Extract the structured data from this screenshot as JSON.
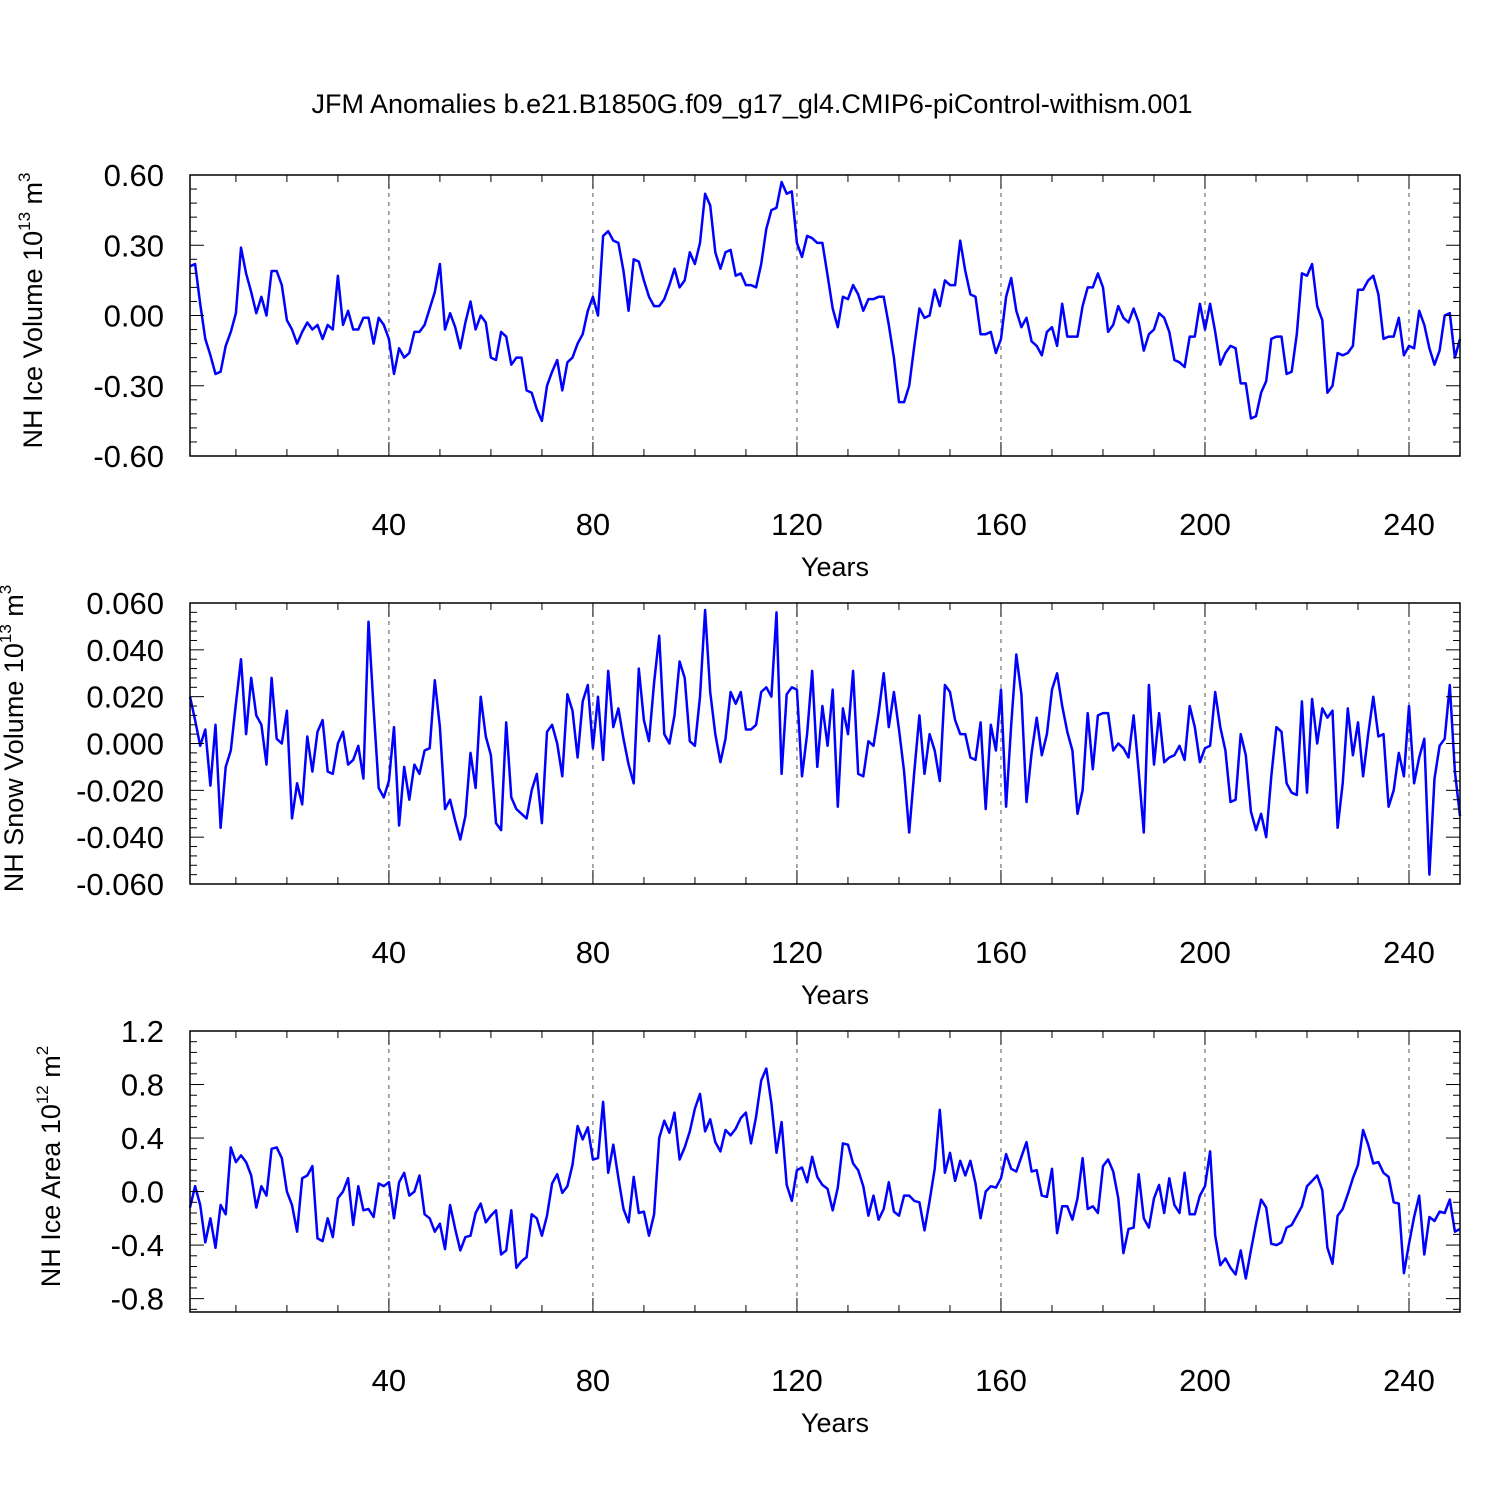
{
  "title": "JFM Anomalies b.e21.B1850G.f09_g17_gl4.CMIP6-piControl-withism.001",
  "line_color": "#0000ff",
  "chart_data": [
    {
      "type": "line",
      "ylabel": "NH Ice Volume 10",
      "ylabel_sup": "13",
      "ylabel_unit": "m",
      "ylabel_unit_sup": "3",
      "xlabel": "Years",
      "xlim": [
        1,
        250
      ],
      "ylim": [
        -0.6,
        0.6
      ],
      "yticks": [
        -0.6,
        -0.3,
        0.0,
        0.3,
        0.6
      ],
      "ytick_labels": [
        "-0.60",
        "-0.30",
        "0.00",
        "0.30",
        "0.60"
      ],
      "xticks": [
        40,
        80,
        120,
        160,
        200,
        240
      ],
      "xtick_labels": [
        "40",
        "80",
        "120",
        "160",
        "200",
        "240"
      ],
      "grid_x": "dashed",
      "series": [
        {
          "name": "NH Ice Volume",
          "x_start": 1,
          "x_step": 1,
          "values": [
            0.21,
            0.22,
            0.05,
            -0.1,
            -0.17,
            -0.25,
            -0.24,
            -0.13,
            -0.07,
            0.01,
            0.29,
            0.18,
            0.1,
            0.01,
            0.08,
            0.0,
            0.19,
            0.19,
            0.13,
            -0.02,
            -0.06,
            -0.12,
            -0.07,
            -0.03,
            -0.06,
            -0.04,
            -0.1,
            -0.04,
            -0.06,
            0.17,
            -0.04,
            0.02,
            -0.06,
            -0.06,
            -0.01,
            -0.01,
            -0.12,
            -0.01,
            -0.04,
            -0.1,
            -0.25,
            -0.14,
            -0.18,
            -0.16,
            -0.07,
            -0.07,
            -0.04,
            0.03,
            0.1,
            0.22,
            -0.06,
            0.01,
            -0.05,
            -0.14,
            -0.03,
            0.06,
            -0.06,
            0.0,
            -0.03,
            -0.18,
            -0.19,
            -0.07,
            -0.09,
            -0.21,
            -0.18,
            -0.18,
            -0.32,
            -0.33,
            -0.4,
            -0.45,
            -0.3,
            -0.24,
            -0.19,
            -0.32,
            -0.2,
            -0.18,
            -0.12,
            -0.08,
            0.02,
            0.08,
            0.0,
            0.34,
            0.36,
            0.32,
            0.31,
            0.19,
            0.02,
            0.24,
            0.23,
            0.15,
            0.08,
            0.04,
            0.04,
            0.07,
            0.13,
            0.2,
            0.12,
            0.15,
            0.27,
            0.22,
            0.31,
            0.52,
            0.47,
            0.27,
            0.2,
            0.27,
            0.28,
            0.17,
            0.18,
            0.13,
            0.13,
            0.12,
            0.22,
            0.37,
            0.45,
            0.46,
            0.57,
            0.52,
            0.53,
            0.31,
            0.25,
            0.34,
            0.33,
            0.31,
            0.31,
            0.17,
            0.03,
            -0.05,
            0.08,
            0.07,
            0.13,
            0.09,
            0.02,
            0.07,
            0.07,
            0.08,
            0.08,
            -0.04,
            -0.18,
            -0.37,
            -0.37,
            -0.3,
            -0.13,
            0.03,
            -0.01,
            0.0,
            0.11,
            0.04,
            0.15,
            0.13,
            0.13,
            0.32,
            0.19,
            0.09,
            0.08,
            -0.08,
            -0.08,
            -0.07,
            -0.16,
            -0.1,
            0.08,
            0.16,
            0.02,
            -0.05,
            -0.01,
            -0.11,
            -0.13,
            -0.17,
            -0.07,
            -0.05,
            -0.13,
            0.05,
            -0.09,
            -0.09,
            -0.09,
            0.04,
            0.12,
            0.12,
            0.18,
            0.12,
            -0.07,
            -0.04,
            0.04,
            -0.01,
            -0.03,
            0.03,
            -0.03,
            -0.15,
            -0.08,
            -0.06,
            0.01,
            -0.01,
            -0.07,
            -0.19,
            -0.2,
            -0.22,
            -0.09,
            -0.09,
            0.05,
            -0.06,
            0.05,
            -0.07,
            -0.21,
            -0.16,
            -0.13,
            -0.14,
            -0.29,
            -0.29,
            -0.44,
            -0.43,
            -0.33,
            -0.28,
            -0.1,
            -0.09,
            -0.09,
            -0.25,
            -0.24,
            -0.08,
            0.18,
            0.17,
            0.22,
            0.04,
            -0.02,
            -0.33,
            -0.3,
            -0.16,
            -0.17,
            -0.16,
            -0.13,
            0.11,
            0.11,
            0.15,
            0.17,
            0.09,
            -0.1,
            -0.09,
            -0.09,
            -0.01,
            -0.17,
            -0.13,
            -0.14,
            0.02,
            -0.04,
            -0.14,
            -0.21,
            -0.15,
            0.0,
            0.01,
            -0.18,
            -0.1
          ]
        }
      ]
    },
    {
      "type": "line",
      "ylabel": "NH Snow Volume 10",
      "ylabel_sup": "13",
      "ylabel_unit": "m",
      "ylabel_unit_sup": "3",
      "xlabel": "Years",
      "xlim": [
        1,
        250
      ],
      "ylim": [
        -0.06,
        0.06
      ],
      "yticks": [
        -0.06,
        -0.04,
        -0.02,
        0.0,
        0.02,
        0.04,
        0.06
      ],
      "ytick_labels": [
        "-0.060",
        "-0.040",
        "-0.020",
        "0.000",
        "0.020",
        "0.040",
        "0.060"
      ],
      "xticks": [
        40,
        80,
        120,
        160,
        200,
        240
      ],
      "xtick_labels": [
        "40",
        "80",
        "120",
        "160",
        "200",
        "240"
      ],
      "grid_x": "dashed",
      "series": [
        {
          "name": "NH Snow Volume",
          "x_start": 1,
          "x_step": 1,
          "values": [
            0.02,
            0.01,
            -0.001,
            0.006,
            -0.018,
            0.008,
            -0.036,
            -0.01,
            -0.003,
            0.017,
            0.036,
            0.004,
            0.028,
            0.012,
            0.008,
            -0.009,
            0.028,
            0.002,
            0.0,
            0.014,
            -0.032,
            -0.017,
            -0.026,
            0.003,
            -0.012,
            0.005,
            0.01,
            -0.012,
            -0.013,
            0.0,
            0.005,
            -0.009,
            -0.007,
            -0.001,
            -0.015,
            0.052,
            0.015,
            -0.019,
            -0.023,
            -0.016,
            0.007,
            -0.035,
            -0.01,
            -0.024,
            -0.009,
            -0.013,
            -0.003,
            -0.002,
            0.027,
            0.007,
            -0.028,
            -0.024,
            -0.033,
            -0.041,
            -0.031,
            -0.004,
            -0.019,
            0.02,
            0.003,
            -0.005,
            -0.034,
            -0.037,
            0.009,
            -0.023,
            -0.028,
            -0.03,
            -0.032,
            -0.02,
            -0.013,
            -0.034,
            0.005,
            0.008,
            0.0,
            -0.014,
            0.021,
            0.014,
            -0.006,
            0.018,
            0.025,
            -0.002,
            0.02,
            -0.007,
            0.031,
            0.007,
            0.015,
            0.002,
            -0.009,
            -0.017,
            0.032,
            0.01,
            0.001,
            0.026,
            0.046,
            0.004,
            0.0,
            0.012,
            0.035,
            0.028,
            0.001,
            -0.001,
            0.02,
            0.057,
            0.022,
            0.004,
            -0.008,
            0.002,
            0.022,
            0.017,
            0.022,
            0.006,
            0.006,
            0.008,
            0.022,
            0.024,
            0.02,
            0.056,
            -0.013,
            0.021,
            0.024,
            0.023,
            -0.014,
            0.004,
            0.031,
            -0.01,
            0.016,
            -0.001,
            0.023,
            -0.027,
            0.015,
            0.004,
            0.031,
            -0.013,
            -0.014,
            0.001,
            -0.001,
            0.013,
            0.03,
            0.007,
            0.022,
            0.006,
            -0.012,
            -0.038,
            -0.012,
            0.012,
            -0.013,
            0.004,
            -0.003,
            -0.016,
            0.025,
            0.022,
            0.01,
            0.004,
            0.004,
            -0.006,
            -0.007,
            0.009,
            -0.028,
            0.008,
            -0.003,
            0.023,
            -0.027,
            0.008,
            0.038,
            0.021,
            -0.025,
            -0.004,
            0.011,
            -0.005,
            0.004,
            0.023,
            0.03,
            0.016,
            0.005,
            -0.003,
            -0.03,
            -0.02,
            0.013,
            -0.011,
            0.012,
            0.013,
            0.013,
            -0.003,
            0.0,
            -0.002,
            -0.006,
            0.012,
            -0.012,
            -0.038,
            0.025,
            -0.009,
            0.013,
            -0.008,
            -0.006,
            -0.005,
            -0.001,
            -0.007,
            0.016,
            0.007,
            -0.008,
            -0.002,
            -0.001,
            0.022,
            0.007,
            -0.003,
            -0.025,
            -0.024,
            0.004,
            -0.005,
            -0.029,
            -0.037,
            -0.03,
            -0.04,
            -0.014,
            0.007,
            0.005,
            -0.017,
            -0.021,
            -0.022,
            0.018,
            -0.021,
            0.019,
            0.0,
            0.015,
            0.011,
            0.014,
            -0.036,
            -0.017,
            0.015,
            -0.005,
            0.009,
            -0.014,
            0.004,
            0.02,
            0.003,
            0.004,
            -0.027,
            -0.02,
            -0.004,
            -0.014,
            0.016,
            -0.017,
            -0.006,
            0.002,
            -0.056,
            -0.015,
            -0.001,
            0.002,
            0.025,
            -0.012,
            -0.031
          ]
        }
      ]
    },
    {
      "type": "line",
      "ylabel": "NH Ice Area 10",
      "ylabel_sup": "12",
      "ylabel_unit": "m",
      "ylabel_unit_sup": "2",
      "xlabel": "Years",
      "xlim": [
        1,
        250
      ],
      "ylim": [
        -0.9,
        1.2
      ],
      "yticks": [
        -0.8,
        -0.4,
        0.0,
        0.4,
        0.8,
        1.2
      ],
      "ytick_labels": [
        "-0.8",
        "-0.4",
        "0.0",
        "0.4",
        "0.8",
        "1.2"
      ],
      "xticks": [
        40,
        80,
        120,
        160,
        200,
        240
      ],
      "xtick_labels": [
        "40",
        "80",
        "120",
        "160",
        "200",
        "240"
      ],
      "grid_x": "dashed",
      "series": [
        {
          "name": "NH Ice Area",
          "x_start": 1,
          "x_step": 1,
          "values": [
            -0.12,
            0.04,
            -0.1,
            -0.38,
            -0.2,
            -0.42,
            -0.1,
            -0.17,
            0.33,
            0.22,
            0.27,
            0.22,
            0.12,
            -0.12,
            0.04,
            -0.03,
            0.32,
            0.33,
            0.25,
            0.0,
            -0.1,
            -0.3,
            0.1,
            0.12,
            0.19,
            -0.35,
            -0.37,
            -0.2,
            -0.34,
            -0.05,
            0.0,
            0.1,
            -0.25,
            0.04,
            -0.14,
            -0.13,
            -0.19,
            0.06,
            0.04,
            0.07,
            -0.2,
            0.07,
            0.14,
            -0.03,
            0.0,
            0.12,
            -0.17,
            -0.2,
            -0.3,
            -0.24,
            -0.43,
            -0.1,
            -0.28,
            -0.44,
            -0.34,
            -0.33,
            -0.16,
            -0.09,
            -0.23,
            -0.18,
            -0.14,
            -0.47,
            -0.44,
            -0.14,
            -0.57,
            -0.52,
            -0.49,
            -0.17,
            -0.2,
            -0.33,
            -0.18,
            0.06,
            0.13,
            -0.01,
            0.04,
            0.2,
            0.49,
            0.39,
            0.48,
            0.24,
            0.25,
            0.67,
            0.14,
            0.35,
            0.1,
            -0.13,
            -0.23,
            0.11,
            -0.16,
            -0.15,
            -0.33,
            -0.17,
            0.4,
            0.53,
            0.44,
            0.59,
            0.24,
            0.33,
            0.45,
            0.62,
            0.73,
            0.45,
            0.54,
            0.37,
            0.3,
            0.46,
            0.42,
            0.47,
            0.55,
            0.59,
            0.36,
            0.56,
            0.83,
            0.92,
            0.66,
            0.29,
            0.52,
            0.05,
            -0.07,
            0.16,
            0.18,
            0.07,
            0.26,
            0.11,
            0.05,
            0.02,
            -0.14,
            0.03,
            0.36,
            0.35,
            0.21,
            0.16,
            0.04,
            -0.18,
            -0.03,
            -0.21,
            -0.13,
            0.07,
            -0.15,
            -0.18,
            -0.03,
            -0.03,
            -0.07,
            -0.08,
            -0.29,
            -0.07,
            0.17,
            0.61,
            0.14,
            0.29,
            0.08,
            0.23,
            0.12,
            0.23,
            0.06,
            -0.2,
            0.0,
            0.04,
            0.03,
            0.1,
            0.28,
            0.17,
            0.15,
            0.26,
            0.37,
            0.15,
            0.16,
            -0.03,
            -0.04,
            0.17,
            -0.31,
            -0.11,
            -0.11,
            -0.21,
            -0.05,
            0.25,
            -0.13,
            -0.11,
            -0.16,
            0.19,
            0.24,
            0.15,
            -0.05,
            -0.46,
            -0.28,
            -0.27,
            0.13,
            -0.2,
            -0.27,
            -0.05,
            0.05,
            -0.16,
            0.1,
            -0.1,
            -0.16,
            0.14,
            -0.17,
            -0.17,
            -0.03,
            0.04,
            0.3,
            -0.33,
            -0.55,
            -0.5,
            -0.57,
            -0.62,
            -0.44,
            -0.65,
            -0.44,
            -0.24,
            -0.06,
            -0.12,
            -0.39,
            -0.4,
            -0.38,
            -0.27,
            -0.25,
            -0.18,
            -0.11,
            0.04,
            0.08,
            0.12,
            0.01,
            -0.42,
            -0.54,
            -0.18,
            -0.13,
            -0.02,
            0.1,
            0.2,
            0.46,
            0.35,
            0.21,
            0.22,
            0.14,
            0.11,
            -0.08,
            -0.09,
            -0.61,
            -0.39,
            -0.19,
            -0.03,
            -0.47,
            -0.19,
            -0.22,
            -0.15,
            -0.16,
            -0.06,
            -0.3,
            -0.28
          ]
        }
      ]
    }
  ]
}
